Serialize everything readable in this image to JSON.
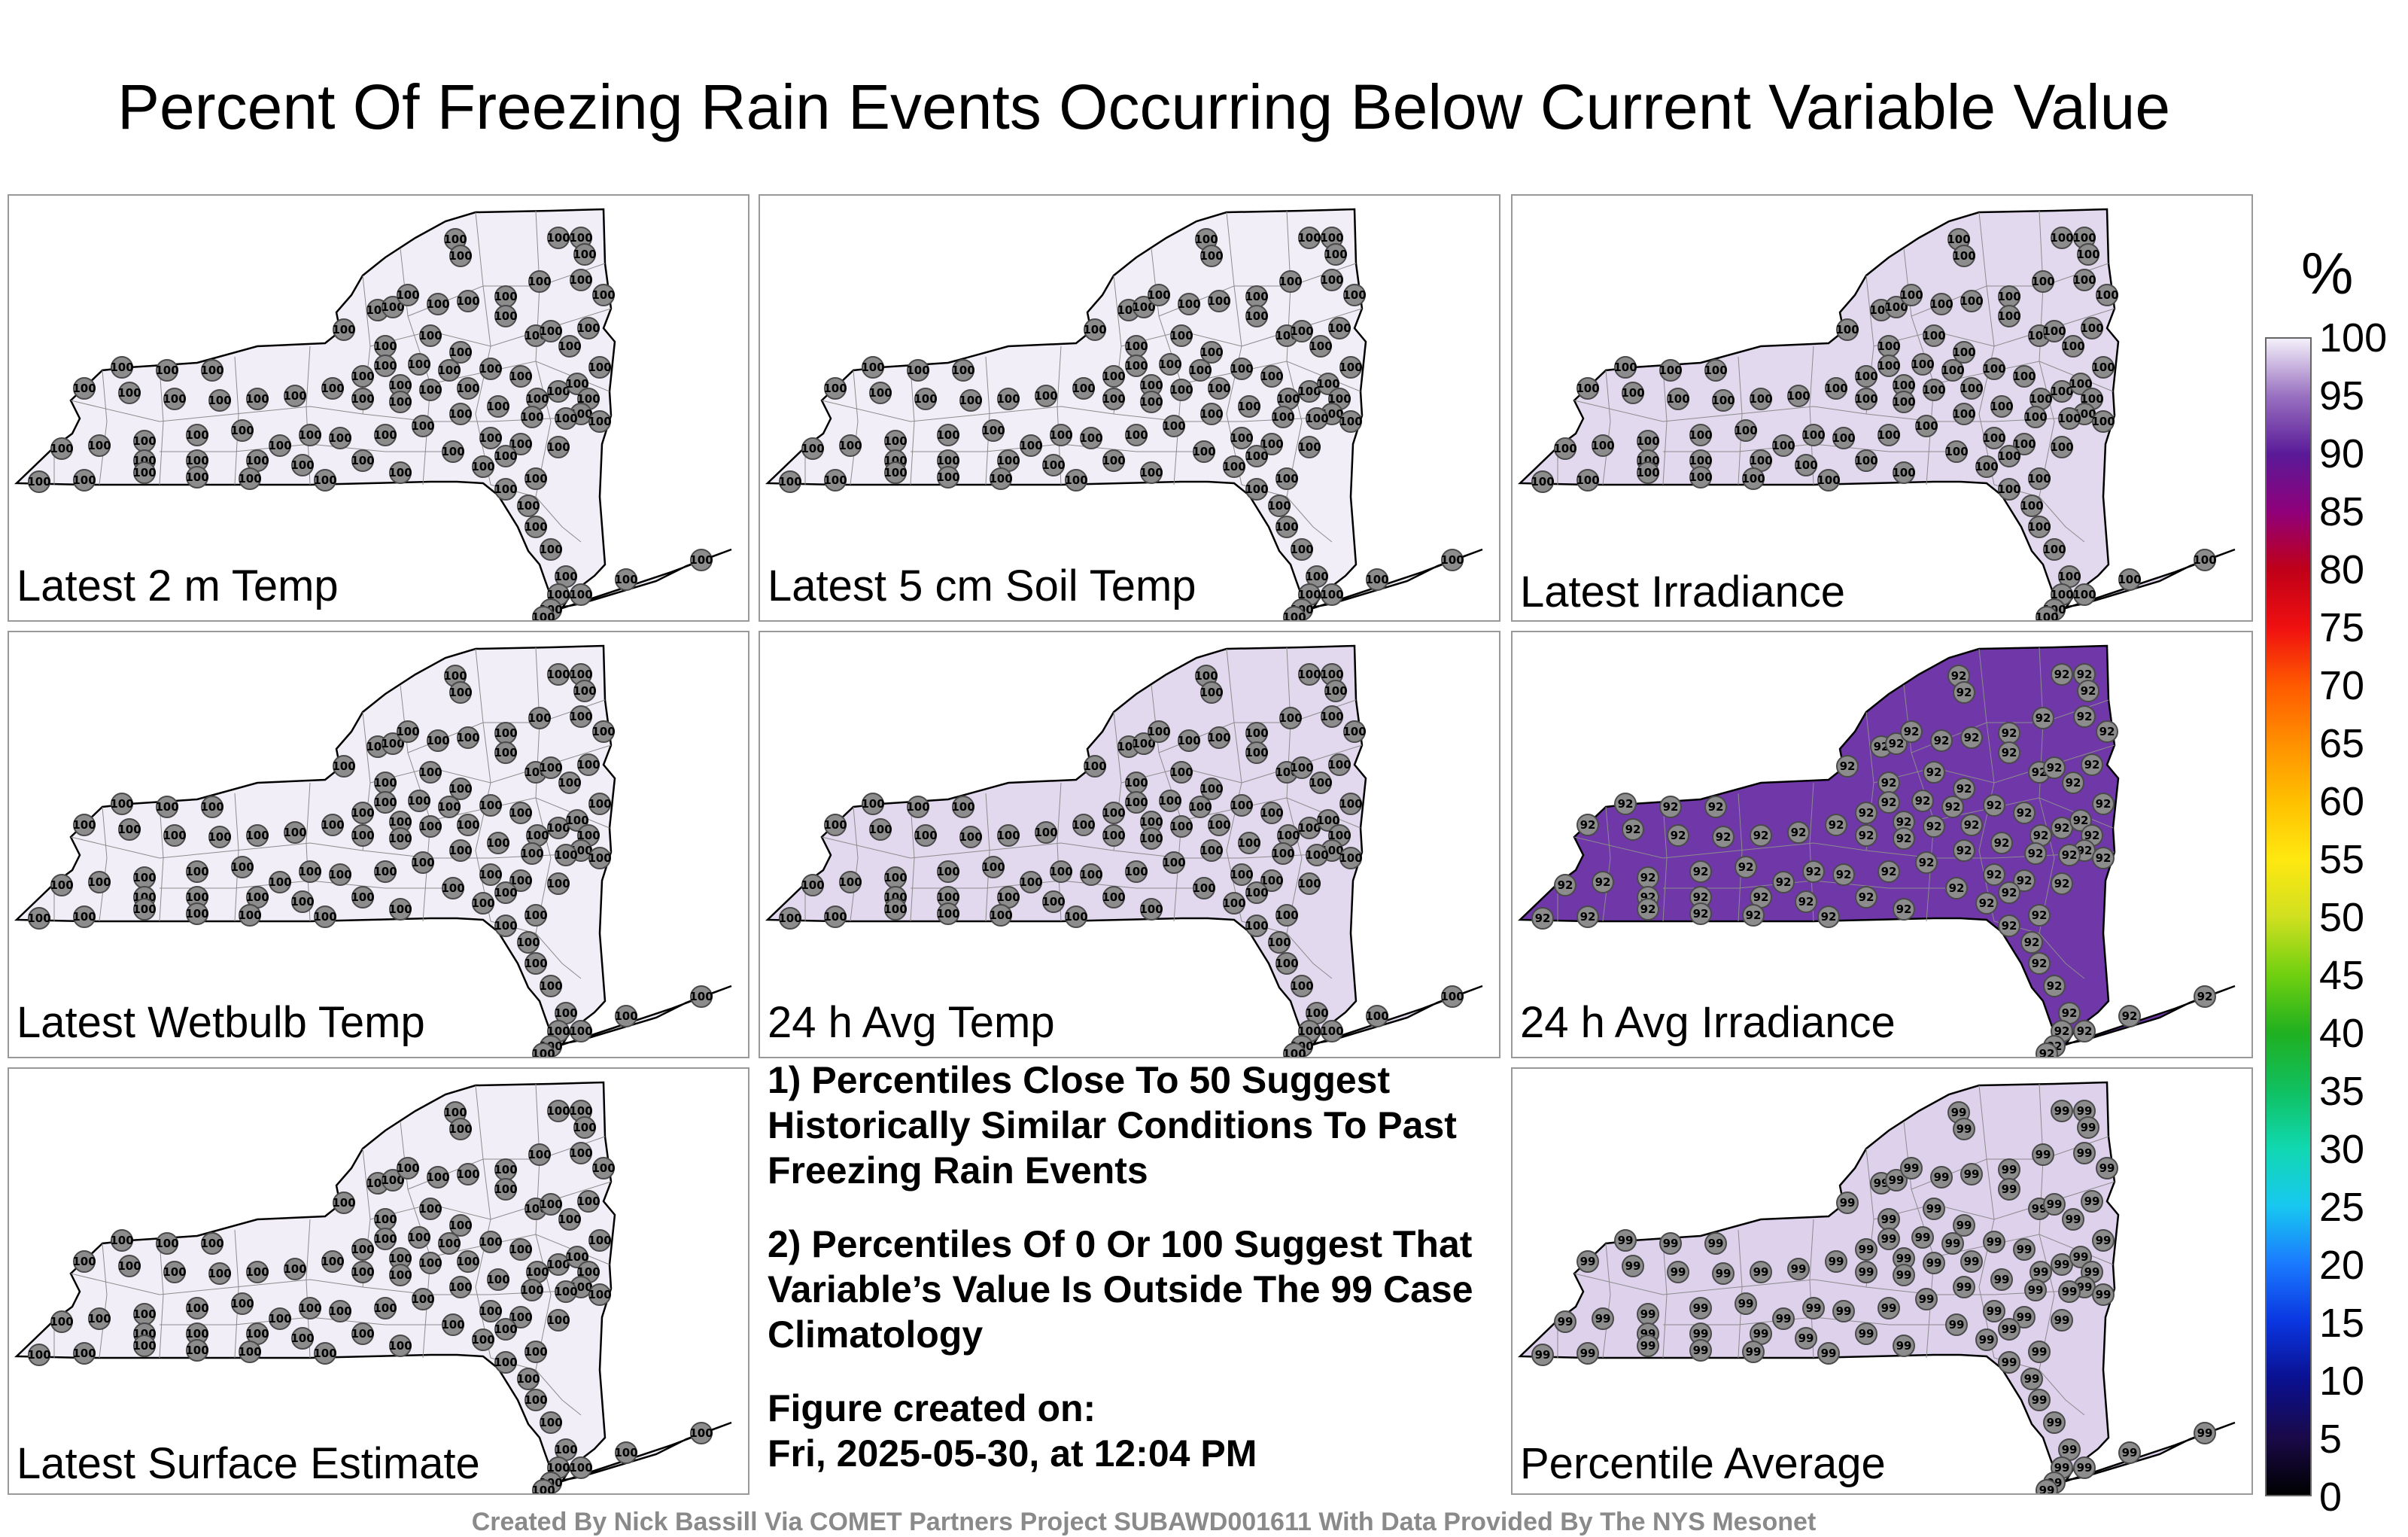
{
  "title": "Percent Of Freezing Rain Events Occurring Below Current Variable Value",
  "panels": [
    {
      "label": "Latest 2 m Temp",
      "value": "100",
      "fill": "#f2eef7"
    },
    {
      "label": "Latest 5 cm Soil Temp",
      "value": "100",
      "fill": "#f2eef7"
    },
    {
      "label": "Latest Irradiance",
      "value": "100",
      "fill": "#e3d9ef"
    },
    {
      "label": "Latest Wetbulb Temp",
      "value": "100",
      "fill": "#f2eef7"
    },
    {
      "label": "24 h Avg Temp",
      "value": "100",
      "fill": "#e3d9ef"
    },
    {
      "label": "24 h Avg Irradiance",
      "value": "92",
      "fill": "#6f37a8"
    },
    {
      "label": "Latest Surface Estimate",
      "value": "100",
      "fill": "#f2eef7"
    },
    {
      "label": "Percentile Average",
      "value": "99",
      "fill": "#ddd1ec"
    }
  ],
  "notes": {
    "note1": "1) Percentiles Close To 50 Suggest Historically Similar Conditions To Past Freezing Rain Events",
    "note2": "2) Percentiles Of 0 Or 100 Suggest That Variable’s Value Is Outside The 99 Case Climatology",
    "created_label": "Figure created on:",
    "created_date": "Fri, 2025-05-30, at 12:04 PM"
  },
  "colorbar": {
    "unit": "%",
    "ticks": [
      "0",
      "5",
      "10",
      "15",
      "20",
      "25",
      "30",
      "35",
      "40",
      "45",
      "50",
      "55",
      "60",
      "65",
      "70",
      "75",
      "80",
      "85",
      "90",
      "95",
      "100"
    ]
  },
  "credit": "Created By Nick Bassill Via COMET Partners Project SUBAWD001611 With Data Provided By The NYS Mesonet"
}
